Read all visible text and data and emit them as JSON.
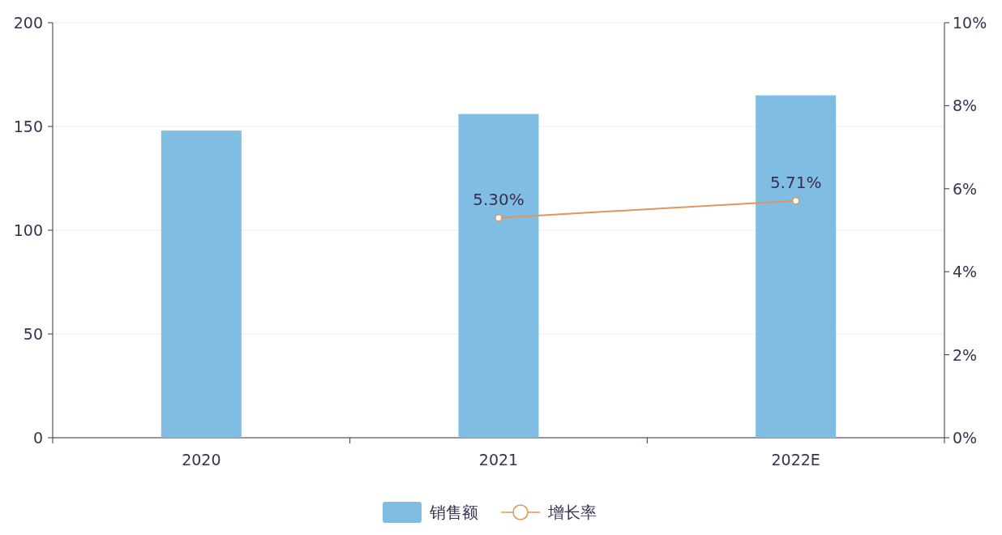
{
  "chart_data": {
    "type": "bar",
    "categories": [
      "2020",
      "2021",
      "2022E"
    ],
    "series": [
      {
        "name": "销售额",
        "color": "#80bde2",
        "values": [
          148,
          156,
          165
        ]
      },
      {
        "name": "增长率",
        "type": "line",
        "axis": "y2",
        "color": "#e0955a",
        "values": [
          null,
          5.3,
          5.71
        ],
        "value_labels": [
          null,
          "5.30%",
          "5.71%"
        ]
      }
    ],
    "ylim": [
      0,
      200
    ],
    "yticks": [
      0,
      50,
      100,
      150,
      200
    ],
    "y2lim": [
      0,
      10
    ],
    "y2ticks": [
      {
        "value": 0,
        "label": "0%"
      },
      {
        "value": 2,
        "label": "2%"
      },
      {
        "value": 4,
        "label": "4%"
      },
      {
        "value": 6,
        "label": "6%"
      },
      {
        "value": 8,
        "label": "8%"
      },
      {
        "value": 10,
        "label": "10%"
      }
    ],
    "grid": "y",
    "legend": "bottom",
    "marker": "circle"
  }
}
